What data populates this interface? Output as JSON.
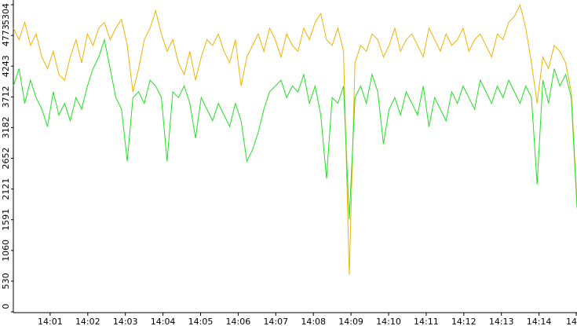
{
  "chart_data": {
    "type": "line",
    "xticks": [
      "14:01",
      "14:02",
      "14:03",
      "14:04",
      "14:05",
      "14:06",
      "14:07",
      "14:08",
      "14:09",
      "14:10",
      "14:11",
      "14:12",
      "14:13",
      "14:14",
      "14"
    ],
    "ylim": [
      0,
      5304
    ],
    "yticks": [
      0,
      530,
      1060,
      1591,
      2121,
      2652,
      3182,
      3712,
      4243,
      4773,
      5304
    ],
    "series": [
      {
        "color": "#f0b400",
        "values": [
          4900,
          4700,
          5000,
          4600,
          4800,
          4400,
          4200,
          4500,
          4100,
          4000,
          4400,
          4700,
          4300,
          4800,
          4600,
          4900,
          5000,
          4700,
          4900,
          5050,
          4600,
          3800,
          4200,
          4700,
          4900,
          5200,
          4800,
          4500,
          4700,
          4300,
          4100,
          4500,
          4000,
          4400,
          4700,
          4600,
          4800,
          4500,
          4300,
          4700,
          3900,
          4400,
          4600,
          4800,
          4500,
          4900,
          4700,
          4400,
          4800,
          4600,
          4500,
          4900,
          4700,
          5000,
          5150,
          4700,
          4600,
          4900,
          4500,
          640,
          4300,
          4600,
          4500,
          4800,
          4700,
          4400,
          4600,
          4900,
          4500,
          4700,
          4800,
          4600,
          4400,
          4900,
          4700,
          4500,
          4800,
          4600,
          4700,
          4900,
          4500,
          4700,
          4800,
          4600,
          4400,
          4800,
          4700,
          5000,
          5100,
          5300,
          4900,
          4300,
          3600,
          4400,
          4200,
          4600,
          4500,
          4300,
          3800,
          1900
        ]
      },
      {
        "color": "#22e022",
        "values": [
          3900,
          4200,
          3600,
          4000,
          3700,
          3500,
          3200,
          3800,
          3400,
          3600,
          3300,
          3700,
          3500,
          3900,
          4200,
          4400,
          4700,
          4200,
          3700,
          3500,
          2600,
          3700,
          3800,
          3600,
          4000,
          3900,
          3700,
          2600,
          3800,
          3700,
          3900,
          3600,
          3000,
          3700,
          3500,
          3300,
          3600,
          3400,
          3200,
          3600,
          3300,
          2600,
          2800,
          3100,
          3500,
          3800,
          3900,
          4000,
          3700,
          3900,
          3800,
          4100,
          3600,
          3900,
          3400,
          2300,
          3700,
          3600,
          3900,
          1600,
          3700,
          3900,
          3600,
          4100,
          3800,
          2900,
          3500,
          3700,
          3400,
          3800,
          3600,
          3400,
          3900,
          3200,
          3700,
          3500,
          3300,
          3800,
          3600,
          3900,
          3700,
          3500,
          4000,
          3800,
          3600,
          3900,
          3700,
          4000,
          3800,
          3600,
          3900,
          3700,
          2200,
          4000,
          3600,
          4200,
          3900,
          4100,
          3700,
          1800
        ]
      }
    ]
  }
}
